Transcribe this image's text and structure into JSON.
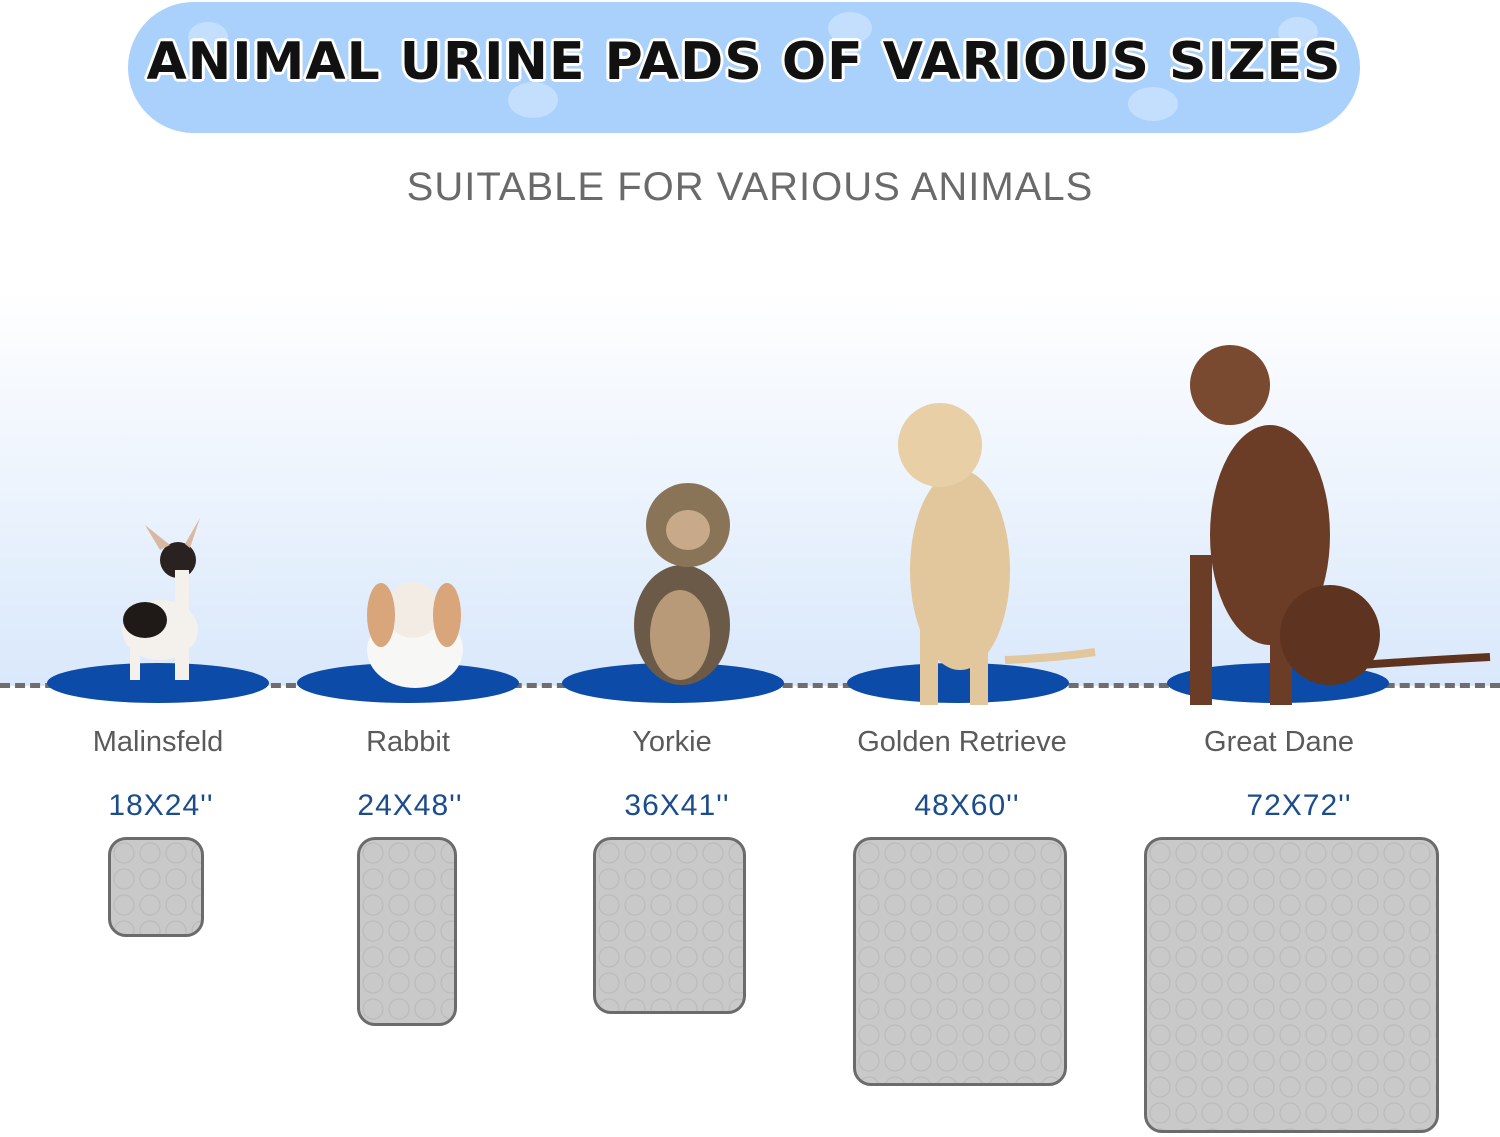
{
  "banner": {
    "title": "ANIMAL URINE PADS OF VARIOUS SIZES"
  },
  "subtitle": "SUITABLE FOR VARIOUS ANIMALS",
  "colors": {
    "banner": "#a9d1fb",
    "mat": "#0d4ba9",
    "size_text": "#1b4c8c",
    "pad": "#c9c9c9"
  },
  "items": [
    {
      "animal": "Malinsfeld",
      "size": "18X24''"
    },
    {
      "animal": "Rabbit",
      "size": "24X48''"
    },
    {
      "animal": "Yorkie",
      "size": "36X41''"
    },
    {
      "animal": "Golden Retrieve",
      "size": "48X60''"
    },
    {
      "animal": "Great Dane",
      "size": "72X72''"
    }
  ]
}
